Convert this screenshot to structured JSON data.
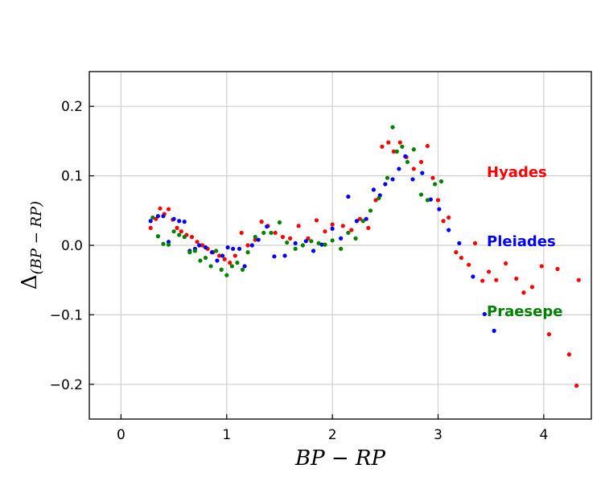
{
  "chart_data": {
    "type": "scatter",
    "xlim": [
      -0.3,
      4.45
    ],
    "ylim": [
      -0.25,
      0.25
    ],
    "x_ticks": [
      0,
      1,
      2,
      3,
      4
    ],
    "y_ticks": [
      -0.2,
      -0.1,
      0.0,
      0.1,
      0.2
    ],
    "x_tick_labels": [
      "0",
      "1",
      "2",
      "3",
      "4"
    ],
    "y_tick_labels": [
      "−0.2",
      "−0.1",
      "0.0",
      "0.1",
      "0.2"
    ],
    "xlabel": "BP − RP",
    "ylabel_main": "Δ",
    "ylabel_sub": "(BP − RP)",
    "grid": true,
    "series": [
      {
        "name": "Hyades",
        "color": "#ff0000",
        "x": [
          0.28,
          0.33,
          0.37,
          0.41,
          0.45,
          0.49,
          0.53,
          0.57,
          0.62,
          0.67,
          0.72,
          0.77,
          0.82,
          0.87,
          0.93,
          0.98,
          1.03,
          1.08,
          1.14,
          1.2,
          1.27,
          1.33,
          1.39,
          1.46,
          1.53,
          1.6,
          1.68,
          1.77,
          1.85,
          1.93,
          2.0,
          2.1,
          2.18,
          2.26,
          2.34,
          2.41,
          2.47,
          2.53,
          2.58,
          2.64,
          2.7,
          2.77,
          2.84,
          2.9,
          2.95,
          3.0,
          3.05,
          3.1,
          3.17,
          3.22,
          3.29,
          3.35,
          3.42,
          3.48,
          3.55,
          3.64,
          3.74,
          3.81,
          3.89,
          3.98,
          4.05,
          4.13,
          4.24,
          4.31,
          4.33
        ],
        "y": [
          0.025,
          0.038,
          0.053,
          0.045,
          0.052,
          0.037,
          0.025,
          0.02,
          0.015,
          0.012,
          0.005,
          0.0,
          -0.005,
          -0.01,
          -0.015,
          -0.02,
          -0.025,
          -0.015,
          0.018,
          0.0,
          0.008,
          0.034,
          0.028,
          0.018,
          0.012,
          0.01,
          0.028,
          0.01,
          0.036,
          0.02,
          0.03,
          0.028,
          0.022,
          0.038,
          0.025,
          0.065,
          0.142,
          0.148,
          0.135,
          0.148,
          0.127,
          0.11,
          0.12,
          0.143,
          0.097,
          0.065,
          0.035,
          0.04,
          -0.01,
          -0.018,
          -0.028,
          0.003,
          -0.051,
          -0.038,
          -0.05,
          -0.026,
          -0.048,
          -0.068,
          -0.06,
          -0.03,
          -0.128,
          -0.034,
          -0.157,
          -0.202,
          -0.05
        ]
      },
      {
        "name": "Pleiades",
        "color": "#0000ff",
        "x": [
          0.28,
          0.35,
          0.4,
          0.45,
          0.5,
          0.55,
          0.6,
          0.65,
          0.7,
          0.74,
          0.8,
          0.86,
          0.91,
          0.96,
          1.01,
          1.06,
          1.12,
          1.17,
          1.24,
          1.3,
          1.38,
          1.45,
          1.55,
          1.65,
          1.75,
          1.82,
          1.9,
          2.0,
          2.08,
          2.15,
          2.23,
          2.32,
          2.39,
          2.45,
          2.5,
          2.57,
          2.63,
          2.69,
          2.76,
          2.85,
          2.93,
          3.01,
          3.1,
          3.2,
          3.33,
          3.44,
          3.53
        ],
        "y": [
          0.035,
          0.042,
          0.042,
          0.005,
          0.038,
          0.035,
          0.034,
          -0.008,
          -0.005,
          0.0,
          -0.003,
          -0.01,
          -0.022,
          -0.015,
          -0.003,
          -0.005,
          -0.005,
          -0.03,
          0.0,
          0.008,
          0.027,
          -0.016,
          -0.015,
          0.003,
          0.006,
          -0.008,
          0.001,
          0.024,
          0.01,
          0.07,
          0.035,
          0.038,
          0.08,
          0.072,
          0.088,
          0.095,
          0.11,
          0.128,
          0.095,
          0.104,
          0.066,
          0.052,
          0.022,
          0.003,
          -0.045,
          -0.099,
          -0.123
        ]
      },
      {
        "name": "Praesepe",
        "color": "#008000",
        "x": [
          0.3,
          0.35,
          0.4,
          0.45,
          0.5,
          0.55,
          0.6,
          0.65,
          0.7,
          0.75,
          0.8,
          0.85,
          0.9,
          0.95,
          1.0,
          1.05,
          1.1,
          1.15,
          1.2,
          1.27,
          1.35,
          1.42,
          1.5,
          1.57,
          1.65,
          1.72,
          1.8,
          1.87,
          1.93,
          2.0,
          2.08,
          2.15,
          2.22,
          2.29,
          2.36,
          2.44,
          2.52,
          2.57,
          2.61,
          2.66,
          2.71,
          2.77,
          2.84,
          2.9,
          2.97,
          3.03
        ],
        "y": [
          0.04,
          0.013,
          0.002,
          0.001,
          0.02,
          0.015,
          0.012,
          -0.01,
          -0.008,
          -0.022,
          -0.018,
          -0.03,
          -0.008,
          -0.035,
          -0.043,
          -0.03,
          -0.025,
          -0.035,
          -0.01,
          0.012,
          0.018,
          0.018,
          0.033,
          0.004,
          -0.005,
          0.0,
          0.006,
          0.003,
          0.001,
          0.007,
          -0.005,
          0.018,
          0.01,
          0.035,
          0.05,
          0.068,
          0.097,
          0.17,
          0.135,
          0.142,
          0.12,
          0.138,
          0.073,
          0.065,
          0.088,
          0.092
        ]
      }
    ],
    "legend_labels": [
      "Hyades",
      "Pleiades",
      "Praesepe"
    ],
    "legend_colors": [
      "#ff0000",
      "#0000ff",
      "#008000"
    ],
    "legend_position": "right"
  }
}
